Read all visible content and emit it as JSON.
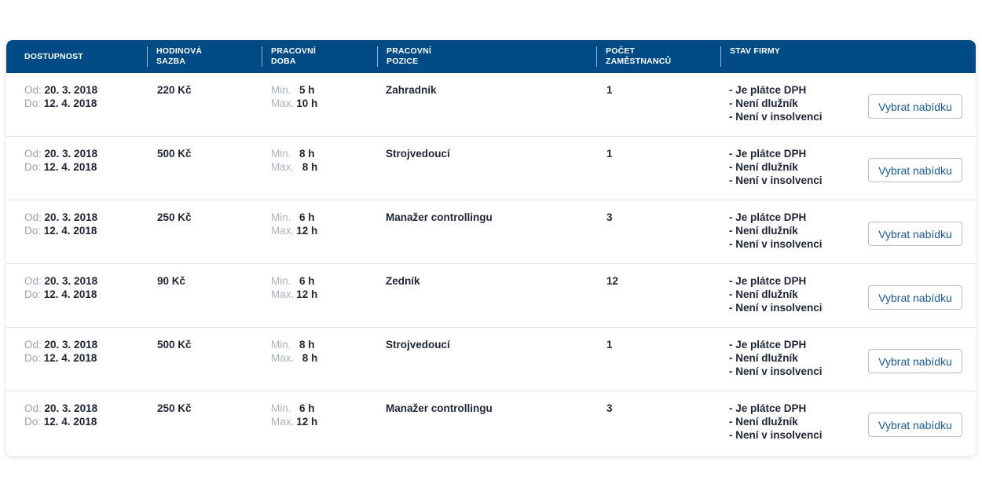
{
  "table": {
    "headers": {
      "availability": [
        "DOSTUPNOST"
      ],
      "hourly_rate": [
        "HODINOVÁ",
        "SAZBA"
      ],
      "work_time": [
        "PRACOVNÍ",
        "DOBA"
      ],
      "position": [
        "PRACOVNÍ",
        "POZICE"
      ],
      "employees": [
        "POČET",
        "ZAMĚSTNANCŮ"
      ],
      "company_status": [
        "STAV FIRMY"
      ]
    },
    "labels": {
      "from": "Od:",
      "to": "Do:",
      "min": "Min.",
      "max": "Max."
    },
    "button_label": "Vybrat nabídku",
    "rows": [
      {
        "from": "20. 3. 2018",
        "to": "12. 4. 2018",
        "rate": "220 Kč",
        "min_hours": "5 h",
        "max_hours": "10 h",
        "position": "Zahradník",
        "count": "1",
        "status": [
          "- Je plátce DPH",
          "- Není dlužník",
          "- Není v insolvenci"
        ]
      },
      {
        "from": "20. 3. 2018",
        "to": "12. 4. 2018",
        "rate": "500 Kč",
        "min_hours": "8 h",
        "max_hours": "8 h",
        "position": "Strojvedoucí",
        "count": "1",
        "status": [
          "- Je plátce DPH",
          "- Není dlužník",
          "- Není v insolvenci"
        ]
      },
      {
        "from": "20. 3. 2018",
        "to": "12. 4. 2018",
        "rate": "250 Kč",
        "min_hours": "6 h",
        "max_hours": "12 h",
        "position": "Manažer controllingu",
        "count": "3",
        "status": [
          "- Je plátce DPH",
          "- Není dlužník",
          "- Není v insolvenci"
        ]
      },
      {
        "from": "20. 3. 2018",
        "to": "12. 4. 2018",
        "rate": "90 Kč",
        "min_hours": "6 h",
        "max_hours": "12 h",
        "position": "Zedník",
        "count": "12",
        "status": [
          "- Je plátce DPH",
          "- Není dlužník",
          "- Není v insolvenci"
        ]
      },
      {
        "from": "20. 3. 2018",
        "to": "12. 4. 2018",
        "rate": "500 Kč",
        "min_hours": "8 h",
        "max_hours": "8 h",
        "position": "Strojvedoucí",
        "count": "1",
        "status": [
          "- Je plátce DPH",
          "- Není dlužník",
          "- Není v insolvenci"
        ]
      },
      {
        "from": "20. 3. 2018",
        "to": "12. 4. 2018",
        "rate": "250 Kč",
        "min_hours": "6 h",
        "max_hours": "12 h",
        "position": "Manažer controllingu",
        "count": "3",
        "status": [
          "- Je plátce DPH",
          "- Není dlužník",
          "- Není v insolvenci"
        ]
      }
    ]
  },
  "colors": {
    "header_bg": "#004a85",
    "text": "#1e2535",
    "label": "#9aa3ae",
    "button_text": "#1a5a8f"
  }
}
